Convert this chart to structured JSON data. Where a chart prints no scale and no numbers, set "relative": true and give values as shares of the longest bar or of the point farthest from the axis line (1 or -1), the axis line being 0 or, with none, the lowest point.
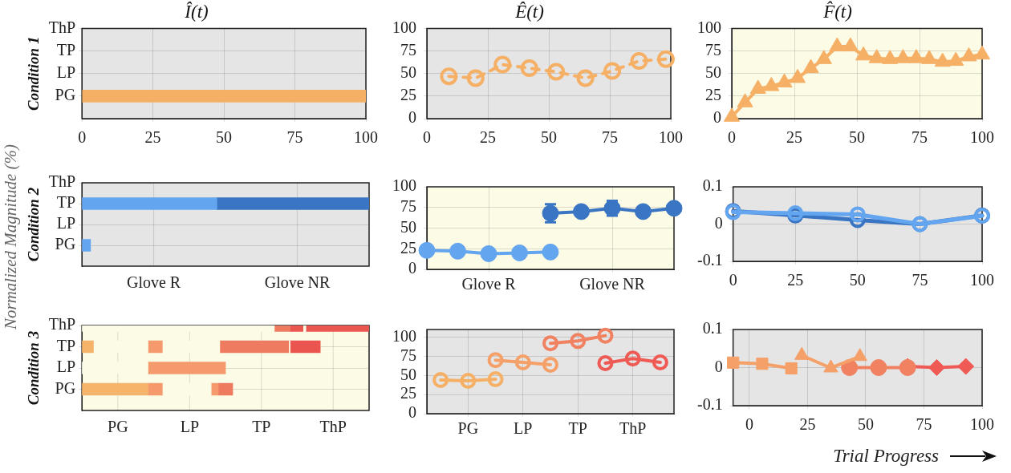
{
  "chart_data": [
    {
      "type": "bar",
      "orientation": "horizontal",
      "title": "Î(t)",
      "ylabel": "Condition 1",
      "categories": [
        "ThP",
        "TP",
        "LP",
        "PG",
        null
      ],
      "xlim": [
        0,
        100
      ],
      "xticks": [
        0,
        25,
        50,
        75,
        100
      ],
      "grid": true,
      "annotations": [
        "Normalized Magnitude (%)"
      ],
      "series": [
        {
          "values": [
            null,
            null,
            null,
            100,
            null
          ],
          "base": [
            null,
            null,
            null,
            0,
            null
          ],
          "color": "#f6b066"
        }
      ]
    },
    {
      "type": "line",
      "title": "Ê(t)",
      "xlim": [
        0,
        100
      ],
      "xticks": [
        0,
        25,
        50,
        75,
        100
      ],
      "ylim": [
        0,
        100
      ],
      "yticks": [
        0,
        25,
        50,
        75,
        100
      ],
      "grid": true,
      "series": [
        {
          "x": [
            9,
            20,
            31,
            42,
            53,
            65,
            76,
            87,
            98
          ],
          "values": [
            47,
            45,
            60,
            56,
            52,
            45,
            53,
            64,
            66
          ],
          "color": "#f6b066",
          "marker": "circle",
          "line_style": "dashed"
        }
      ]
    },
    {
      "type": "line",
      "title": "F̂(t)",
      "xlim": [
        0,
        100
      ],
      "xticks": [
        0,
        25,
        50,
        75,
        100
      ],
      "ylim": [
        0,
        100
      ],
      "yticks": [
        0,
        25,
        50,
        75,
        100
      ],
      "grid": true,
      "series": [
        {
          "x": [
            0,
            5.3,
            10.5,
            15.8,
            21,
            26.3,
            31.6,
            36.8,
            42.1,
            47.4,
            52.6,
            57.9,
            63.2,
            68.4,
            73.7,
            78.9,
            84.2,
            89.5,
            94.7,
            100
          ],
          "values": [
            2,
            18,
            33,
            36,
            40,
            45,
            56,
            66,
            80,
            80,
            70,
            67,
            66,
            67,
            67,
            66,
            63,
            64,
            69,
            71
          ],
          "color": "#f6b066",
          "marker": "triangle"
        }
      ]
    },
    {
      "type": "bar",
      "orientation": "horizontal",
      "relative": true,
      "stacked": true,
      "ylabel": "Condition 2",
      "categories": [
        "ThP",
        "TP",
        "LP",
        "PG",
        null
      ],
      "grid": true,
      "annotations": [
        "Glove R",
        "Glove NR"
      ],
      "series": [
        {
          "values": [
            null,
            0.47,
            null,
            0.03,
            null
          ],
          "color": "#64a5ef"
        },
        {
          "values": [
            null,
            0.53,
            null,
            null,
            null
          ],
          "color": "#3a75c4"
        }
      ]
    },
    {
      "type": "line",
      "categories": [
        null,
        null,
        "Glove R",
        null,
        null,
        null,
        "Glove NR",
        null,
        null
      ],
      "ylim": [
        0,
        100
      ],
      "yticks": [
        0,
        25,
        50,
        75,
        100
      ],
      "grid": true,
      "series": [
        {
          "values": [
            23,
            22,
            19,
            20,
            21,
            null,
            null,
            null,
            null
          ],
          "color": "#64a5ef",
          "marker": "circle"
        },
        {
          "values": [
            null,
            null,
            null,
            null,
            68,
            70,
            74,
            70,
            74
          ],
          "errors": [
            null,
            null,
            null,
            null,
            11,
            null,
            9,
            null,
            null
          ],
          "color": "#3a75c4",
          "marker": "circle"
        }
      ]
    },
    {
      "type": "line",
      "xlim": [
        0,
        100
      ],
      "xticks": [
        0,
        25,
        50,
        75,
        100
      ],
      "ylim": [
        -0.1,
        0.1
      ],
      "yticks": [
        -0.1,
        0,
        0.1
      ],
      "grid": true,
      "series": [
        {
          "x": [
            0,
            25,
            50,
            75,
            100
          ],
          "values": [
            0.032,
            0.029,
            0.026,
            0,
            0.022
          ],
          "color": "#64a5ef",
          "marker": "circle"
        },
        {
          "x": [
            0,
            25,
            50,
            75,
            100
          ],
          "values": [
            0.035,
            0.023,
            0.011,
            0,
            0.023
          ],
          "color": "#3a75c4",
          "marker": "circle"
        }
      ]
    },
    {
      "type": "bar",
      "orientation": "horizontal",
      "relative": true,
      "stacked": true,
      "ylabel": "Condition 3",
      "categories": [
        "ThP",
        "TP",
        "LP",
        "PG",
        null
      ],
      "grid": true,
      "annotations": [
        "PG",
        "LP",
        "TP",
        "ThP"
      ],
      "series": [
        {
          "values": [
            0.67,
            0.04,
            0.23,
            0.23,
            null
          ],
          "colors": [
            "#fbfbe6",
            "#f6b36a",
            "#fbfbe6",
            "#f6b36a",
            null
          ]
        },
        {
          "values": [
            0.055,
            0.19,
            0.27,
            0.05,
            null
          ],
          "colors": [
            "#ee7b60",
            "#fbfbe6",
            "#f49a6c",
            "#f49a6c",
            null
          ]
        },
        {
          "values": [
            0.045,
            0.05,
            null,
            0.17,
            null
          ],
          "colors": [
            "#eb5550",
            "#f49a6c",
            null,
            "#fbfbe6",
            null
          ]
        },
        {
          "values": [
            0.01,
            0.2,
            null,
            0.025,
            null
          ],
          "colors": [
            "#fbfbe6",
            "#fbfbe6",
            null,
            "#f49a6c",
            null
          ]
        },
        {
          "values": [
            0.22,
            0.24,
            null,
            0.05,
            null
          ],
          "colors": [
            "#eb5550",
            "#ee7b60",
            null,
            "#ee7b60",
            null
          ]
        },
        {
          "values": [
            null,
            0.005,
            null,
            null,
            null
          ],
          "colors": [
            null,
            "#fbfbe6",
            null,
            null,
            null
          ]
        },
        {
          "values": [
            null,
            0.105,
            null,
            null,
            null
          ],
          "colors": [
            null,
            "#eb5550",
            null,
            null,
            null
          ]
        }
      ]
    },
    {
      "type": "line",
      "categories": [
        null,
        "PG",
        null,
        "LP",
        null,
        "TP",
        null,
        "ThP",
        null
      ],
      "ylim": [
        0,
        110
      ],
      "yticks": [
        0,
        25,
        50,
        75,
        100
      ],
      "grid": true,
      "series": [
        {
          "values": [
            44,
            43,
            45,
            null,
            null,
            null,
            null,
            null,
            null
          ],
          "color": "#f6b066",
          "marker": "circle"
        },
        {
          "values": [
            null,
            null,
            70,
            67,
            64,
            null,
            null,
            null,
            null
          ],
          "color": "#f5a068",
          "marker": "circle"
        },
        {
          "values": [
            null,
            null,
            null,
            null,
            92,
            95,
            102,
            null,
            null
          ],
          "color": "#f08262",
          "marker": "circle"
        },
        {
          "values": [
            null,
            null,
            null,
            null,
            null,
            null,
            66,
            72,
            67
          ],
          "color": "#ef5a55",
          "marker": "circle"
        }
      ]
    },
    {
      "type": "line",
      "xlim": [
        -7,
        100
      ],
      "xticks": [
        0,
        25,
        50,
        75,
        100
      ],
      "ylim": [
        -0.1,
        0.1
      ],
      "yticks": [
        -0.1,
        0,
        0.1
      ],
      "grid": true,
      "annotations": [
        "Trial Progress"
      ],
      "series": [
        {
          "x": [
            -7,
            5.5,
            18
          ],
          "values": [
            0.013,
            0.01,
            -0.002
          ],
          "color": "#f5a068",
          "marker": "square"
        },
        {
          "x": [
            22.5,
            35,
            47.5
          ],
          "values": [
            0.032,
            -0.001,
            0.029
          ],
          "color": "#f5a068",
          "marker": "triangle"
        },
        {
          "x": [
            43,
            55.5,
            68
          ],
          "values": [
            0,
            0,
            0
          ],
          "color": "#f08262",
          "marker": "circle"
        },
        {
          "x": [
            68,
            80.5,
            93
          ],
          "values": [
            0.003,
            0,
            0.003
          ],
          "color": "#ef5a55",
          "marker": "diamond"
        }
      ]
    }
  ]
}
